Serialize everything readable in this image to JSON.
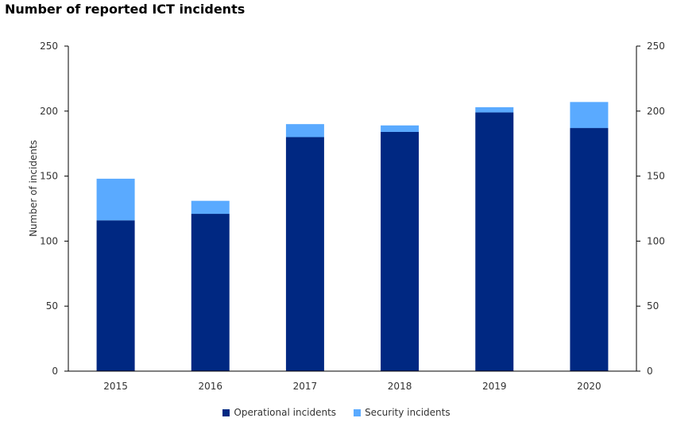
{
  "chart_data": {
    "type": "bar",
    "stacked": true,
    "title": "Number of reported ICT incidents",
    "ylabel": "Number of incidents",
    "xlabel": "",
    "ylim": [
      0,
      250
    ],
    "yticks": [
      0,
      50,
      100,
      150,
      200,
      250
    ],
    "secondary_y_axis": true,
    "legend_position": "bottom-center",
    "grid": false,
    "categories": [
      "2015",
      "2016",
      "2017",
      "2018",
      "2019",
      "2020"
    ],
    "series": [
      {
        "name": "Operational incidents",
        "color": "#002882",
        "values": [
          116,
          121,
          180,
          184,
          199,
          187
        ]
      },
      {
        "name": "Security incidents",
        "color": "#5aaaff",
        "values": [
          32,
          10,
          10,
          5,
          4,
          20
        ]
      }
    ]
  }
}
